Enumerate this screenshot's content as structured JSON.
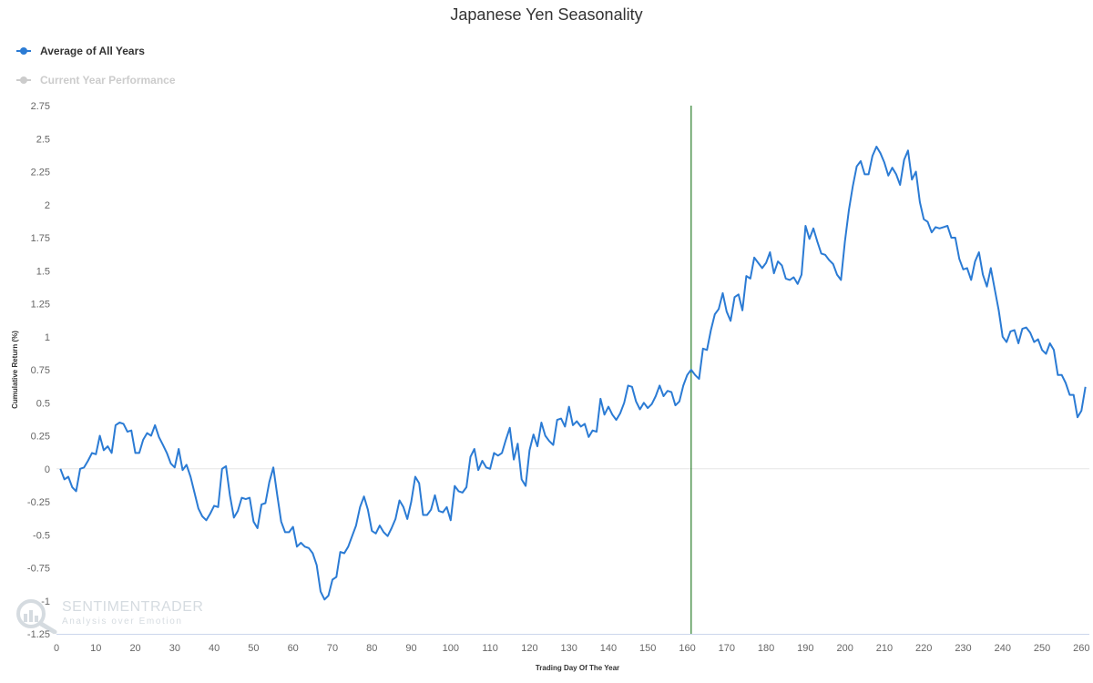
{
  "colors": {
    "series": "#2b7bd4",
    "series_inactive": "#cccccc",
    "marker_line": "#006400",
    "zero_line": "#e6e6e6"
  },
  "legend": {
    "avg_label": "Average of All Years",
    "current_label": "Current Year Performance"
  },
  "watermark": {
    "brand": "SENTIMENTRADER",
    "tagline": "Analysis over Emotion"
  },
  "chart_data": {
    "type": "line",
    "title": "Japanese Yen Seasonality",
    "xlabel": "Trading Day Of The Year",
    "ylabel": "Cumulative Return (%)",
    "xlim": [
      0,
      262
    ],
    "ylim": [
      -1.25,
      2.75
    ],
    "x_ticks": [
      0,
      10,
      20,
      30,
      40,
      50,
      60,
      70,
      80,
      90,
      100,
      110,
      120,
      130,
      140,
      150,
      160,
      170,
      180,
      190,
      200,
      210,
      220,
      230,
      240,
      250,
      260
    ],
    "y_ticks": [
      -1.25,
      -1,
      -0.75,
      -0.5,
      -0.25,
      0,
      0.25,
      0.5,
      0.75,
      1,
      1.25,
      1.5,
      1.75,
      2,
      2.25,
      2.5,
      2.75
    ],
    "y_tick_labels": [
      "-1.25",
      "-1",
      "-0.75",
      "-0.5",
      "-0.25",
      "0",
      "0.25",
      "0.5",
      "0.75",
      "1",
      "1.25",
      "1.5",
      "1.75",
      "2",
      "2.25",
      "2.5",
      "2.75"
    ],
    "grid": false,
    "current_day_marker": 161,
    "series": [
      {
        "name": "Average of All Years",
        "visible": true,
        "x_start": 1,
        "values": [
          0.0,
          -0.08,
          -0.06,
          -0.14,
          -0.17,
          0.0,
          0.01,
          0.06,
          0.12,
          0.11,
          0.25,
          0.14,
          0.17,
          0.12,
          0.33,
          0.35,
          0.34,
          0.28,
          0.29,
          0.12,
          0.12,
          0.22,
          0.27,
          0.25,
          0.33,
          0.24,
          0.18,
          0.12,
          0.04,
          0.01,
          0.15,
          -0.01,
          0.03,
          -0.06,
          -0.18,
          -0.3,
          -0.36,
          -0.39,
          -0.34,
          -0.28,
          -0.29,
          0.0,
          0.02,
          -0.2,
          -0.37,
          -0.32,
          -0.22,
          -0.23,
          -0.22,
          -0.4,
          -0.45,
          -0.27,
          -0.26,
          -0.1,
          0.01,
          -0.2,
          -0.4,
          -0.48,
          -0.48,
          -0.44,
          -0.59,
          -0.56,
          -0.59,
          -0.6,
          -0.64,
          -0.73,
          -0.93,
          -0.99,
          -0.96,
          -0.84,
          -0.82,
          -0.63,
          -0.64,
          -0.59,
          -0.51,
          -0.43,
          -0.29,
          -0.21,
          -0.31,
          -0.47,
          -0.49,
          -0.43,
          -0.48,
          -0.51,
          -0.45,
          -0.38,
          -0.24,
          -0.29,
          -0.38,
          -0.25,
          -0.06,
          -0.11,
          -0.35,
          -0.35,
          -0.31,
          -0.2,
          -0.32,
          -0.33,
          -0.29,
          -0.39,
          -0.13,
          -0.17,
          -0.18,
          -0.14,
          0.09,
          0.15,
          -0.01,
          0.06,
          0.01,
          0.0,
          0.12,
          0.1,
          0.12,
          0.22,
          0.31,
          0.07,
          0.19,
          -0.08,
          -0.13,
          0.14,
          0.26,
          0.17,
          0.35,
          0.25,
          0.21,
          0.18,
          0.37,
          0.38,
          0.32,
          0.47,
          0.33,
          0.36,
          0.32,
          0.34,
          0.24,
          0.29,
          0.28,
          0.53,
          0.41,
          0.47,
          0.41,
          0.37,
          0.42,
          0.5,
          0.63,
          0.62,
          0.51,
          0.45,
          0.5,
          0.46,
          0.49,
          0.55,
          0.63,
          0.55,
          0.59,
          0.58,
          0.48,
          0.51,
          0.63,
          0.71,
          0.75,
          0.71,
          0.68,
          0.91,
          0.9,
          1.05,
          1.17,
          1.21,
          1.33,
          1.19,
          1.12,
          1.3,
          1.32,
          1.2,
          1.46,
          1.44,
          1.6,
          1.56,
          1.52,
          1.56,
          1.64,
          1.48,
          1.57,
          1.54,
          1.44,
          1.43,
          1.45,
          1.4,
          1.47,
          1.84,
          1.74,
          1.82,
          1.72,
          1.63,
          1.62,
          1.58,
          1.55,
          1.47,
          1.43,
          1.72,
          1.96,
          2.14,
          2.29,
          2.33,
          2.23,
          2.23,
          2.37,
          2.44,
          2.39,
          2.32,
          2.22,
          2.28,
          2.23,
          2.15,
          2.34,
          2.41,
          2.19,
          2.25,
          2.02,
          1.89,
          1.87,
          1.79,
          1.83,
          1.82,
          1.83,
          1.84,
          1.75,
          1.75,
          1.59,
          1.51,
          1.52,
          1.43,
          1.57,
          1.64,
          1.47,
          1.38,
          1.52,
          1.36,
          1.2,
          1.0,
          0.96,
          1.04,
          1.05,
          0.95,
          1.06,
          1.07,
          1.03,
          0.96,
          0.98,
          0.9,
          0.87,
          0.95,
          0.9,
          0.71,
          0.71,
          0.65,
          0.56,
          0.56,
          0.39,
          0.44,
          0.62
        ]
      },
      {
        "name": "Current Year Performance",
        "visible": false,
        "values": []
      }
    ]
  }
}
